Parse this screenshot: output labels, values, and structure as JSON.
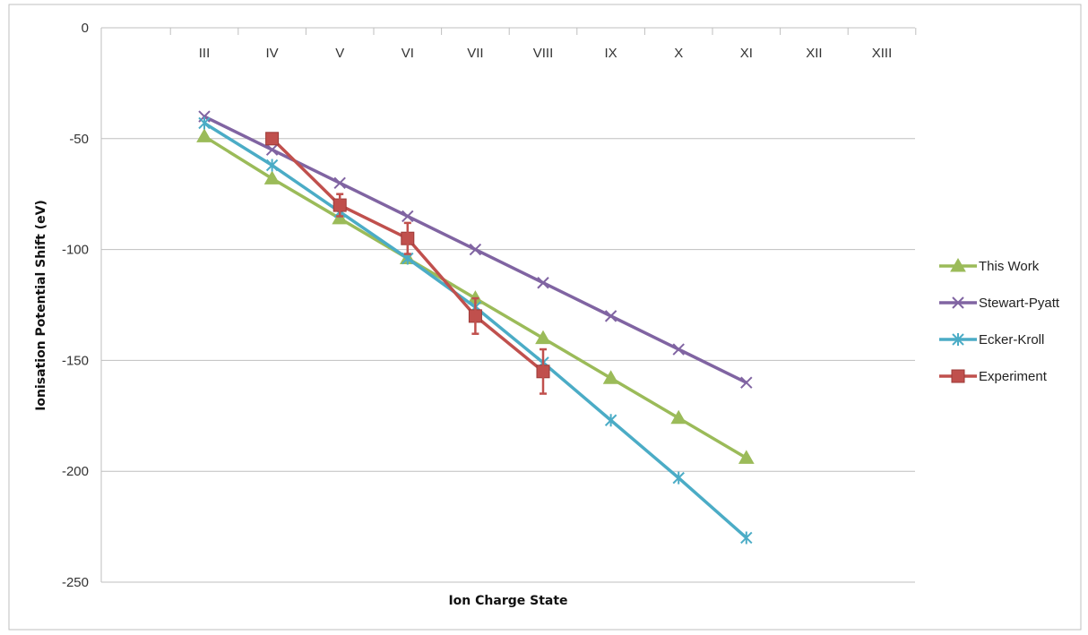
{
  "chart_data": {
    "type": "line",
    "title": "",
    "xlabel": "Ion Charge State",
    "ylabel": "Ionisation Potential Shift (eV)",
    "categories": [
      "III",
      "IV",
      "V",
      "VI",
      "VII",
      "VIII",
      "IX",
      "X",
      "XI",
      "XII",
      "XIII"
    ],
    "ylim": [
      -250,
      0
    ],
    "yticks": [
      0,
      -50,
      -100,
      -150,
      -200,
      -250
    ],
    "ytick_labels": [
      "0",
      "-50",
      "-100",
      "-150",
      "-200",
      "-250"
    ],
    "grid": "horizontal",
    "legend_position": "right",
    "x_axis_labels_position": "top",
    "series": [
      {
        "name": "This Work",
        "color": "#9bbb59",
        "marker": "triangle",
        "values": [
          -49,
          -68,
          -86,
          -104,
          -122,
          -140,
          -158,
          -176,
          -194,
          null,
          null
        ]
      },
      {
        "name": "Stewart-Pyatt",
        "color": "#8064a2",
        "marker": "x",
        "values": [
          -40,
          -55,
          -70,
          -85,
          -100,
          -115,
          -130,
          -145,
          -160,
          null,
          null
        ]
      },
      {
        "name": "Ecker-Kroll",
        "color": "#4bacc6",
        "marker": "asterisk",
        "values": [
          -43,
          -62,
          -83,
          -104,
          -126,
          -151,
          -177,
          -203,
          -230,
          null,
          null
        ]
      },
      {
        "name": "Experiment",
        "color": "#c0504d",
        "marker": "square",
        "values": [
          null,
          -50,
          -80,
          -95,
          -130,
          -155,
          null,
          null,
          null,
          null,
          null
        ],
        "error": [
          null,
          2,
          5,
          7,
          8,
          10,
          null,
          null,
          null,
          null,
          null
        ]
      }
    ]
  }
}
